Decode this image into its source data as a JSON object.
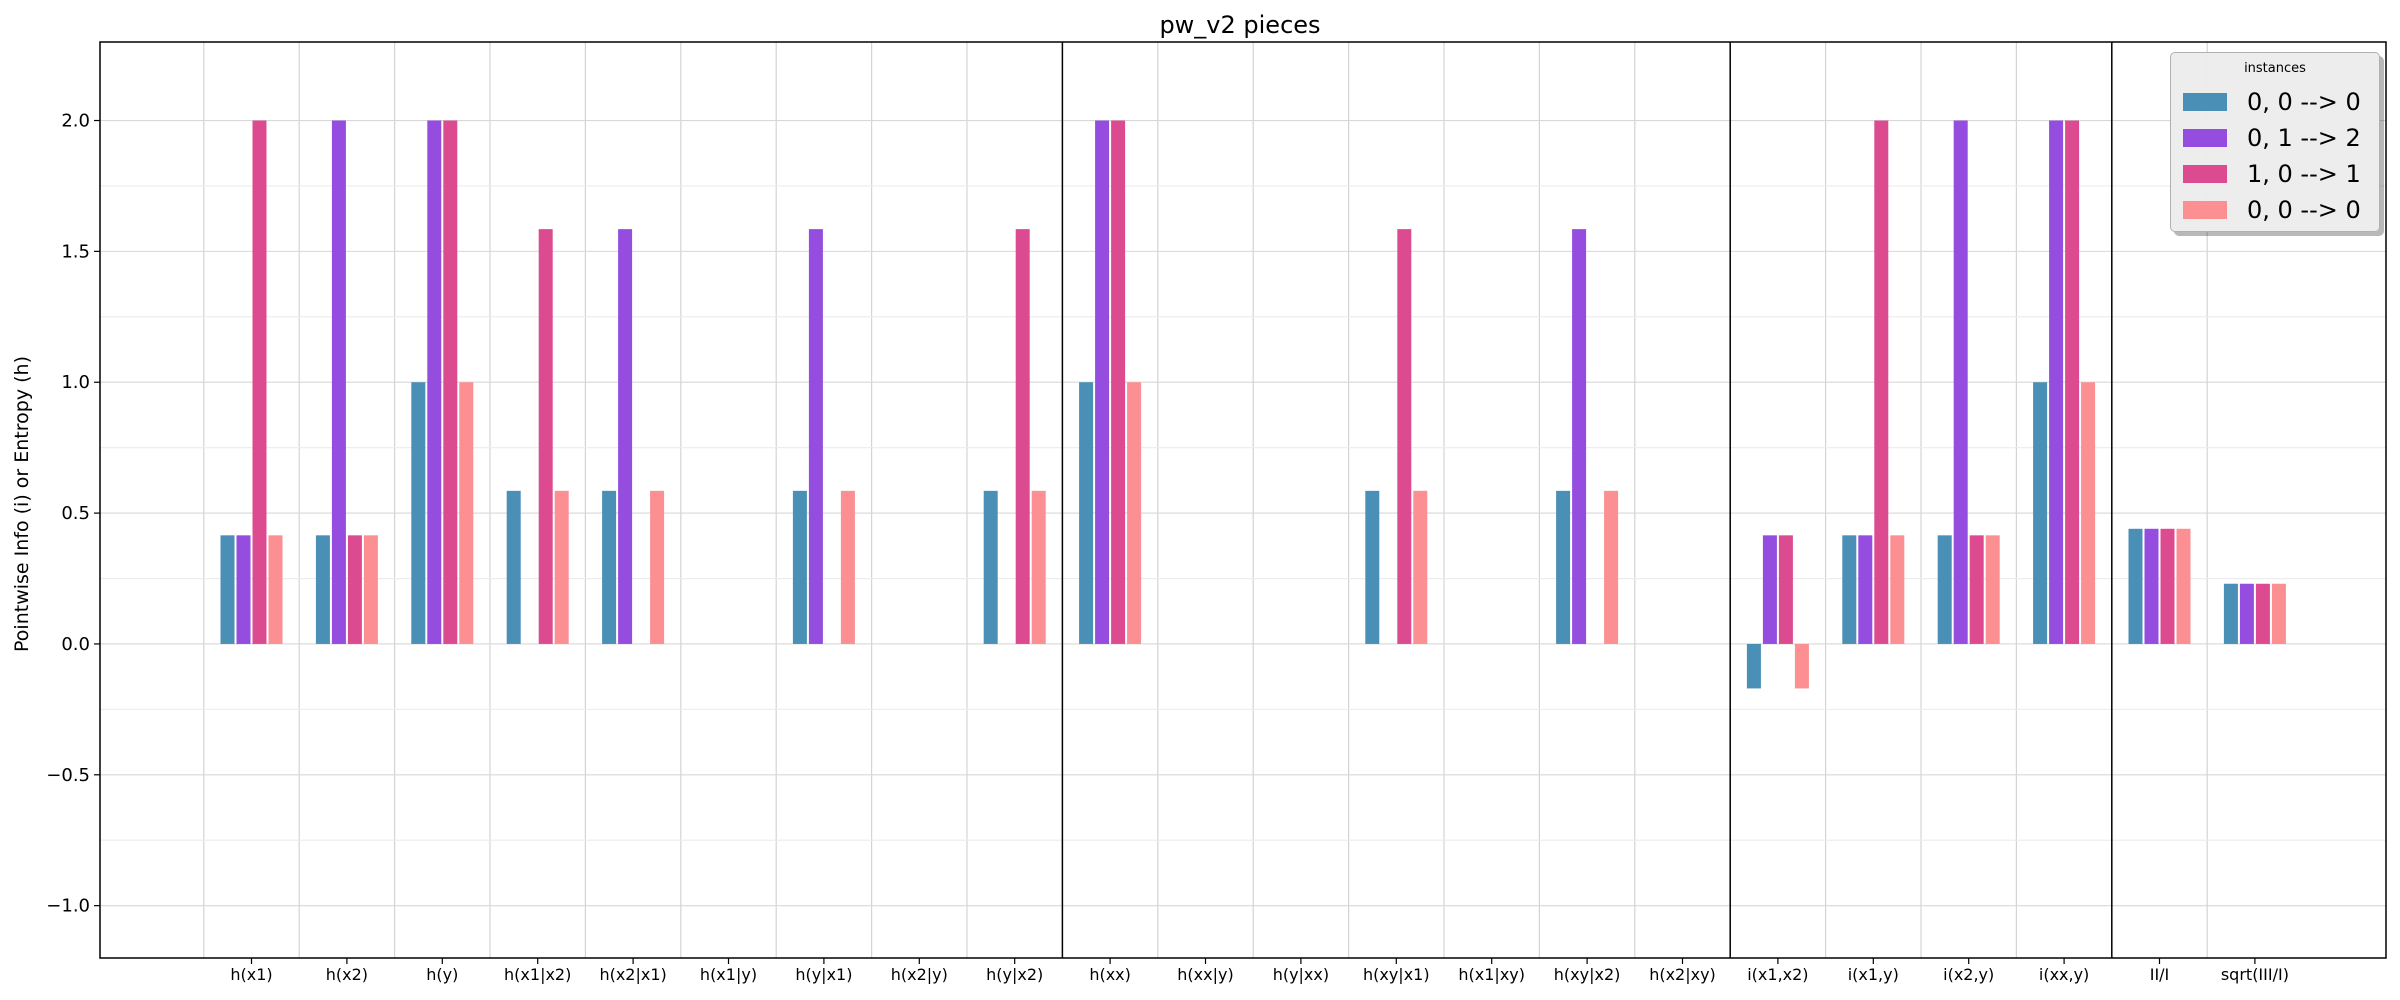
{
  "chart_data": {
    "type": "bar",
    "title": "pw_v2 pieces",
    "xlabel": "",
    "ylabel": "Pointwise Info (i) or Entropy (h)",
    "ylim": [
      -1.2,
      2.3
    ],
    "yticks": [
      -1.0,
      -0.5,
      0.0,
      0.5,
      1.0,
      1.5,
      2.0
    ],
    "ytick_labels": [
      "−1.0",
      "−0.5",
      "0.0",
      "0.5",
      "1.0",
      "1.5",
      "2.0"
    ],
    "grid": true,
    "categories": [
      "h(x1)",
      "h(x2)",
      "h(y)",
      "h(x1|x2)",
      "h(x2|x1)",
      "h(x1|y)",
      "h(y|x1)",
      "h(x2|y)",
      "h(y|x2)",
      "h(xx)",
      "h(xx|y)",
      "h(y|xx)",
      "h(xy|x1)",
      "h(x1|xy)",
      "h(xy|x2)",
      "h(x2|xy)",
      "i(x1,x2)",
      "i(x1,y)",
      "i(x2,y)",
      "i(xx,y)",
      "II/I",
      "sqrt(III/I)"
    ],
    "series": [
      {
        "name": "0, 0 --> 0",
        "color": "#4a8fb5",
        "values": [
          0.415,
          0.415,
          1.0,
          0.585,
          0.585,
          0,
          0.585,
          0,
          0.585,
          1.0,
          0,
          0,
          0.585,
          0,
          0.585,
          0,
          -0.17,
          0.415,
          0.415,
          1.0,
          0.44,
          0.23
        ]
      },
      {
        "name": "0, 1 --> 2",
        "color": "#944dde",
        "values": [
          0.415,
          2.0,
          2.0,
          0,
          1.585,
          0,
          1.585,
          0,
          0,
          2.0,
          0,
          0,
          0,
          0,
          1.585,
          0,
          0.415,
          0.415,
          2.0,
          2.0,
          0.44,
          0.23
        ]
      },
      {
        "name": "1, 0 --> 1",
        "color": "#dc4b8f",
        "values": [
          2.0,
          0.415,
          2.0,
          1.585,
          0,
          0,
          0,
          0,
          1.585,
          2.0,
          0,
          0,
          1.585,
          0,
          0,
          0,
          0.415,
          2.0,
          0.415,
          2.0,
          0.44,
          0.23
        ]
      },
      {
        "name": "0, 0 --> 0",
        "color": "#fb8f92",
        "values": [
          0.415,
          0.415,
          1.0,
          0.585,
          0.585,
          0,
          0.585,
          0,
          0.585,
          1.0,
          0,
          0,
          0.585,
          0,
          0.585,
          0,
          -0.17,
          0.415,
          0.415,
          1.0,
          0.44,
          0.23
        ]
      }
    ],
    "group_separators_after": [
      "h(y|x2)",
      "h(x2|xy)",
      "i(xx,y)"
    ],
    "legend": {
      "title": "instances",
      "placement": "top-right"
    }
  }
}
